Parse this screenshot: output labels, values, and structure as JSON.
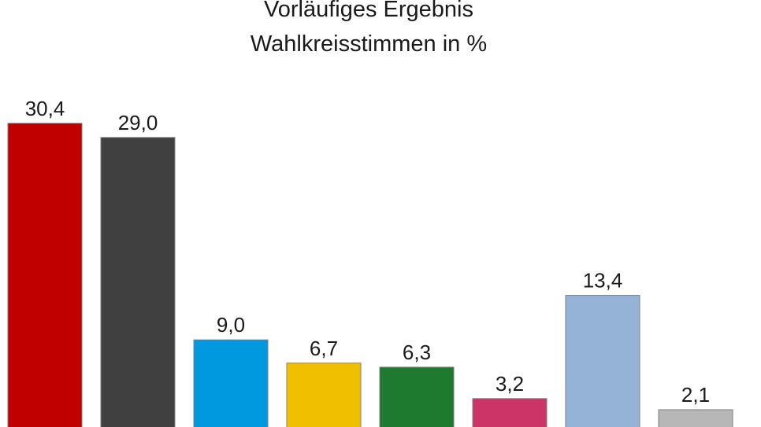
{
  "chart_data": {
    "type": "bar",
    "title": [
      "Vorläufiges Ergebnis",
      "Wahlkreisstimmen in %"
    ],
    "xlabel": "",
    "ylabel": "",
    "values": [
      30.4,
      29.0,
      9.0,
      6.7,
      6.3,
      3.2,
      13.4,
      2.1
    ],
    "value_labels": [
      "30,4",
      "29,0",
      "9,0",
      "6,7",
      "6,3",
      "3,2",
      "13,4",
      "2,1"
    ],
    "colors": [
      "#c00000",
      "#404040",
      "#0099e0",
      "#f0c000",
      "#1e7a2e",
      "#cc3366",
      "#95b3d7",
      "#b7b7b7"
    ],
    "grid": false,
    "legend": "none"
  }
}
